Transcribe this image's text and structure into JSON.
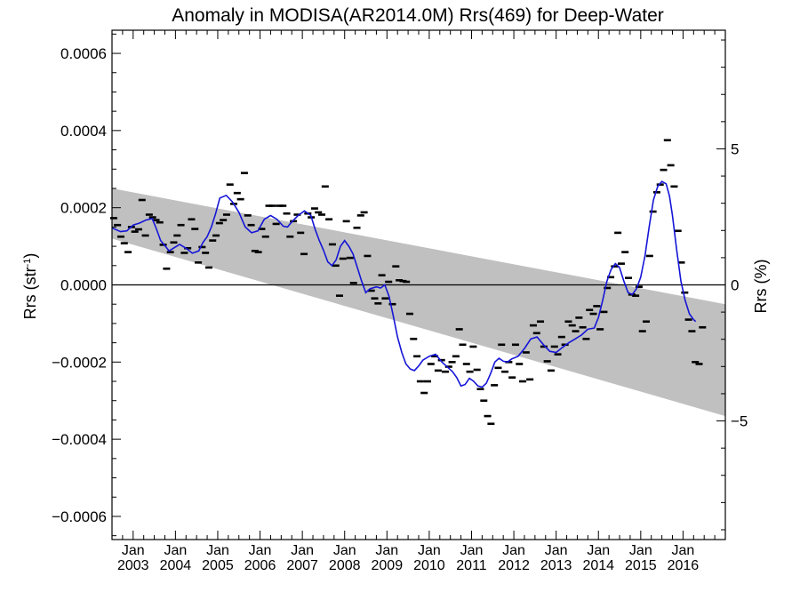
{
  "chart_data": {
    "type": "scatter",
    "title": "Anomaly in MODISA(AR2014.0M) Rrs(469) for Deep-Water",
    "ylabel_main": "Rrs (str",
    "ylabel_sup": "-1",
    "ylabel_close": ")",
    "ylabel_right": "Rrs (%)",
    "ylim": [
      -0.00066,
      0.00066
    ],
    "y2lim": [
      -9.36,
      9.36
    ],
    "xlim": [
      2002.5,
      2017.0
    ],
    "grid": false,
    "yticks": [
      {
        "value": 0.0006,
        "label": "0.0006"
      },
      {
        "value": 0.0004,
        "label": "0.0004"
      },
      {
        "value": 0.0002,
        "label": "0.0002"
      },
      {
        "value": 0.0,
        "label": "0.0000"
      },
      {
        "value": -0.0002,
        "label": "−0.0002"
      },
      {
        "value": -0.0004,
        "label": "−0.0004"
      },
      {
        "value": -0.0006,
        "label": "−0.0006"
      }
    ],
    "y2ticks": [
      {
        "value": 5,
        "label": "5"
      },
      {
        "value": 0,
        "label": "0"
      },
      {
        "value": -5,
        "label": "−5"
      }
    ],
    "xticks": [
      {
        "value": 2003.0,
        "label_top": "Jan",
        "label_bottom": "2003"
      },
      {
        "value": 2004.0,
        "label_top": "Jan",
        "label_bottom": "2004"
      },
      {
        "value": 2005.0,
        "label_top": "Jan",
        "label_bottom": "2005"
      },
      {
        "value": 2006.0,
        "label_top": "Jan",
        "label_bottom": "2006"
      },
      {
        "value": 2007.0,
        "label_top": "Jan",
        "label_bottom": "2007"
      },
      {
        "value": 2008.0,
        "label_top": "Jan",
        "label_bottom": "2008"
      },
      {
        "value": 2009.0,
        "label_top": "Jan",
        "label_bottom": "2009"
      },
      {
        "value": 2010.0,
        "label_top": "Jan",
        "label_bottom": "2010"
      },
      {
        "value": 2011.0,
        "label_top": "Jan",
        "label_bottom": "2011"
      },
      {
        "value": 2012.0,
        "label_top": "Jan",
        "label_bottom": "2012"
      },
      {
        "value": 2013.0,
        "label_top": "Jan",
        "label_bottom": "2013"
      },
      {
        "value": 2014.0,
        "label_top": "Jan",
        "label_bottom": "2014"
      },
      {
        "value": 2015.0,
        "label_top": "Jan",
        "label_bottom": "2015"
      },
      {
        "value": 2016.0,
        "label_top": "Jan",
        "label_bottom": "2016"
      }
    ],
    "band": {
      "color": "#c0c0c0",
      "x": [
        2002.5,
        2017.0
      ],
      "upper": [
        0.00025,
        -5e-05
      ],
      "lower": [
        0.00012,
        -0.00034
      ]
    },
    "zero_line": 0.0,
    "points_color": "#000000",
    "points": [
      [
        2002.54,
        0.000173
      ],
      [
        2002.63,
        0.000155
      ],
      [
        2002.71,
        0.000125
      ],
      [
        2002.79,
        0.000108
      ],
      [
        2002.88,
        8.5e-05
      ],
      [
        2002.96,
        0.00015
      ],
      [
        2003.04,
        0.000138
      ],
      [
        2003.13,
        0.000144
      ],
      [
        2003.21,
        0.00022
      ],
      [
        2003.29,
        0.000128
      ],
      [
        2003.38,
        0.000182
      ],
      [
        2003.46,
        0.000175
      ],
      [
        2003.54,
        0.000168
      ],
      [
        2003.63,
        0.000162
      ],
      [
        2003.71,
        0.000104
      ],
      [
        2003.79,
        4.2e-05
      ],
      [
        2003.88,
        8.5e-05
      ],
      [
        2003.96,
        0.00011
      ],
      [
        2004.04,
        0.000128
      ],
      [
        2004.13,
        0.000155
      ],
      [
        2004.21,
        8.3e-05
      ],
      [
        2004.29,
        9.5e-05
      ],
      [
        2004.38,
        0.00017
      ],
      [
        2004.46,
        0.000145
      ],
      [
        2004.54,
        5.8e-05
      ],
      [
        2004.63,
        9.8e-05
      ],
      [
        2004.71,
        8.3e-05
      ],
      [
        2004.79,
        4.5e-05
      ],
      [
        2004.88,
        0.000115
      ],
      [
        2004.96,
        0.000128
      ],
      [
        2005.04,
        0.00016
      ],
      [
        2005.13,
        0.000168
      ],
      [
        2005.21,
        0.000182
      ],
      [
        2005.29,
        0.00026
      ],
      [
        2005.38,
        0.00021
      ],
      [
        2005.46,
        0.000238
      ],
      [
        2005.54,
        0.000222
      ],
      [
        2005.63,
        0.00029
      ],
      [
        2005.71,
        0.00018
      ],
      [
        2005.79,
        0.000155
      ],
      [
        2005.88,
        8.8e-05
      ],
      [
        2005.96,
        8.5e-05
      ],
      [
        2006.04,
        0.000145
      ],
      [
        2006.13,
        0.000125
      ],
      [
        2006.21,
        0.000205
      ],
      [
        2006.29,
        0.000205
      ],
      [
        2006.38,
        0.000158
      ],
      [
        2006.46,
        0.000205
      ],
      [
        2006.54,
        0.000205
      ],
      [
        2006.63,
        0.000185
      ],
      [
        2006.71,
        0.000125
      ],
      [
        2006.79,
        0.000165
      ],
      [
        2006.88,
        0.000182
      ],
      [
        2006.96,
        0.000135
      ],
      [
        2007.04,
        8e-05
      ],
      [
        2007.13,
        0.000185
      ],
      [
        2007.21,
        0.000175
      ],
      [
        2007.29,
        0.000198
      ],
      [
        2007.38,
        0.000188
      ],
      [
        2007.46,
        0.000182
      ],
      [
        2007.54,
        0.000255
      ],
      [
        2007.63,
        0.00017
      ],
      [
        2007.71,
        0.000105
      ],
      [
        2007.79,
        5e-05
      ],
      [
        2007.88,
        -2.8e-05
      ],
      [
        2007.96,
        6.8e-05
      ],
      [
        2008.04,
        0.000165
      ],
      [
        2008.13,
        7e-05
      ],
      [
        2008.21,
        5e-06
      ],
      [
        2008.29,
        0.000148
      ],
      [
        2008.38,
        0.00018
      ],
      [
        2008.46,
        0.000188
      ],
      [
        2008.54,
        7.5e-05
      ],
      [
        2008.63,
        -1.5e-05
      ],
      [
        2008.71,
        -3.5e-05
      ],
      [
        2008.79,
        -4.8e-05
      ],
      [
        2008.88,
        2.5e-05
      ],
      [
        2008.96,
        -3.5e-05
      ],
      [
        2009.04,
        8e-06
      ],
      [
        2009.13,
        -5e-05
      ],
      [
        2009.21,
        4.8e-05
      ],
      [
        2009.29,
        1.2e-05
      ],
      [
        2009.38,
        1e-05
      ],
      [
        2009.46,
        8e-06
      ],
      [
        2009.54,
        -7.5e-05
      ],
      [
        2009.63,
        -0.00014
      ],
      [
        2009.71,
        -0.000185
      ],
      [
        2009.79,
        -0.00025
      ],
      [
        2009.88,
        -0.00028
      ],
      [
        2009.96,
        -0.00025
      ],
      [
        2010.04,
        -0.000205
      ],
      [
        2010.13,
        -0.000185
      ],
      [
        2010.21,
        -0.000222
      ],
      [
        2010.29,
        -0.000195
      ],
      [
        2010.38,
        -0.000225
      ],
      [
        2010.46,
        -0.000212
      ],
      [
        2010.54,
        -0.0002
      ],
      [
        2010.63,
        -0.000185
      ],
      [
        2010.71,
        -0.000115
      ],
      [
        2010.79,
        -0.000155
      ],
      [
        2010.88,
        -0.000205
      ],
      [
        2010.96,
        -0.000225
      ],
      [
        2011.04,
        -0.00016
      ],
      [
        2011.13,
        -0.00022
      ],
      [
        2011.21,
        -0.00027
      ],
      [
        2011.29,
        -0.0003
      ],
      [
        2011.38,
        -0.00034
      ],
      [
        2011.46,
        -0.00036
      ],
      [
        2011.54,
        -0.00026
      ],
      [
        2011.63,
        -0.000215
      ],
      [
        2011.71,
        -0.000155
      ],
      [
        2011.79,
        -0.000225
      ],
      [
        2011.88,
        -0.0002
      ],
      [
        2011.96,
        -0.00024
      ],
      [
        2012.04,
        -0.000155
      ],
      [
        2012.13,
        -0.000205
      ],
      [
        2012.21,
        -0.00025
      ],
      [
        2012.29,
        -0.000175
      ],
      [
        2012.38,
        -0.000245
      ],
      [
        2012.46,
        -0.000105
      ],
      [
        2012.54,
        -0.000125
      ],
      [
        2012.63,
        -9.5e-05
      ],
      [
        2012.71,
        -0.00016
      ],
      [
        2012.79,
        -0.000198
      ],
      [
        2012.88,
        -0.000222
      ],
      [
        2012.96,
        -0.00016
      ],
      [
        2013.04,
        -0.00018
      ],
      [
        2013.13,
        -0.000135
      ],
      [
        2013.21,
        -0.000155
      ],
      [
        2013.29,
        -9.5e-05
      ],
      [
        2013.38,
        -0.000105
      ],
      [
        2013.46,
        -0.00012
      ],
      [
        2013.54,
        -8.5e-05
      ],
      [
        2013.63,
        -0.00011
      ],
      [
        2013.71,
        -0.00014
      ],
      [
        2013.79,
        -6.5e-05
      ],
      [
        2013.88,
        -7.5e-05
      ],
      [
        2013.96,
        -5.5e-05
      ],
      [
        2014.04,
        -0.000115
      ],
      [
        2014.13,
        -7e-05
      ],
      [
        2014.21,
        -8e-06
      ],
      [
        2014.29,
        2e-05
      ],
      [
        2014.38,
        4.8e-05
      ],
      [
        2014.46,
        0.000135
      ],
      [
        2014.54,
        5.5e-05
      ],
      [
        2014.63,
        8.5e-05
      ],
      [
        2014.71,
        1.8e-05
      ],
      [
        2014.79,
        -2.5e-05
      ],
      [
        2014.88,
        -2.8e-05
      ],
      [
        2014.96,
        -5e-06
      ],
      [
        2015.04,
        -0.00012
      ],
      [
        2015.13,
        -9.5e-05
      ],
      [
        2015.21,
        7.5e-05
      ],
      [
        2015.29,
        0.00019
      ],
      [
        2015.38,
        0.00024
      ],
      [
        2015.46,
        0.00026
      ],
      [
        2015.54,
        0.000298
      ],
      [
        2015.63,
        0.000375
      ],
      [
        2015.71,
        0.00031
      ],
      [
        2015.79,
        0.000255
      ],
      [
        2015.88,
        0.00014
      ],
      [
        2015.96,
        5.8e-05
      ],
      [
        2016.04,
        -2e-05
      ],
      [
        2016.13,
        -9e-05
      ],
      [
        2016.21,
        -0.00012
      ],
      [
        2016.29,
        -0.0002
      ],
      [
        2016.38,
        -0.000205
      ],
      [
        2016.46,
        -0.00011
      ]
    ],
    "smooth_color": "#1515d8",
    "smooth": [
      [
        2002.5,
        0.000148
      ],
      [
        2002.7,
        0.000138
      ],
      [
        2002.85,
        0.00014
      ],
      [
        2003.0,
        0.000155
      ],
      [
        2003.15,
        0.00016
      ],
      [
        2003.3,
        0.000168
      ],
      [
        2003.45,
        0.000172
      ],
      [
        2003.55,
        0.000145
      ],
      [
        2003.65,
        0.000115
      ],
      [
        2003.75,
        0.000102
      ],
      [
        2003.85,
        8.8e-05
      ],
      [
        2003.95,
        9.5e-05
      ],
      [
        2004.1,
        0.000105
      ],
      [
        2004.25,
        9.5e-05
      ],
      [
        2004.4,
        8.2e-05
      ],
      [
        2004.55,
        8.8e-05
      ],
      [
        2004.65,
        0.00011
      ],
      [
        2004.75,
        0.000125
      ],
      [
        2004.85,
        0.00015
      ],
      [
        2004.95,
        0.000185
      ],
      [
        2005.05,
        0.000225
      ],
      [
        2005.2,
        0.000232
      ],
      [
        2005.35,
        0.000215
      ],
      [
        2005.5,
        0.000188
      ],
      [
        2005.65,
        0.00015
      ],
      [
        2005.8,
        0.000135
      ],
      [
        2005.95,
        0.00014
      ],
      [
        2006.1,
        0.00017
      ],
      [
        2006.25,
        0.00018
      ],
      [
        2006.4,
        0.00017
      ],
      [
        2006.55,
        0.000152
      ],
      [
        2006.65,
        0.00015
      ],
      [
        2006.75,
        0.000163
      ],
      [
        2006.9,
        0.00018
      ],
      [
        2007.05,
        0.000192
      ],
      [
        2007.2,
        0.00018
      ],
      [
        2007.3,
        0.000145
      ],
      [
        2007.4,
        0.000115
      ],
      [
        2007.5,
        9e-05
      ],
      [
        2007.6,
        6e-05
      ],
      [
        2007.7,
        5e-05
      ],
      [
        2007.8,
        6.5e-05
      ],
      [
        2007.9,
        0.0001
      ],
      [
        2008.0,
        0.000115
      ],
      [
        2008.1,
        0.0001
      ],
      [
        2008.2,
        8e-05
      ],
      [
        2008.3,
        4.5e-05
      ],
      [
        2008.4,
        1e-05
      ],
      [
        2008.5,
        -2e-05
      ],
      [
        2008.6,
        -1e-05
      ],
      [
        2008.75,
        -5e-06
      ],
      [
        2008.85,
        -8e-06
      ],
      [
        2008.95,
        0.0
      ],
      [
        2009.05,
        -3e-05
      ],
      [
        2009.15,
        -8e-05
      ],
      [
        2009.25,
        -0.000135
      ],
      [
        2009.35,
        -0.000175
      ],
      [
        2009.45,
        -0.000205
      ],
      [
        2009.55,
        -0.000218
      ],
      [
        2009.65,
        -0.000222
      ],
      [
        2009.75,
        -0.00021
      ],
      [
        2009.85,
        -0.000195
      ],
      [
        2010.0,
        -0.000185
      ],
      [
        2010.15,
        -0.00018
      ],
      [
        2010.3,
        -0.0002
      ],
      [
        2010.45,
        -0.000215
      ],
      [
        2010.55,
        -0.000225
      ],
      [
        2010.65,
        -0.00024
      ],
      [
        2010.75,
        -0.000262
      ],
      [
        2010.85,
        -0.000258
      ],
      [
        2010.95,
        -0.000242
      ],
      [
        2011.05,
        -0.00025
      ],
      [
        2011.15,
        -0.000262
      ],
      [
        2011.25,
        -0.000265
      ],
      [
        2011.35,
        -0.000255
      ],
      [
        2011.45,
        -0.00023
      ],
      [
        2011.55,
        -0.0002
      ],
      [
        2011.65,
        -0.00019
      ],
      [
        2011.75,
        -0.000198
      ],
      [
        2011.85,
        -0.0002
      ],
      [
        2011.95,
        -0.000192
      ],
      [
        2012.1,
        -0.000185
      ],
      [
        2012.25,
        -0.000165
      ],
      [
        2012.4,
        -0.00014
      ],
      [
        2012.55,
        -0.000135
      ],
      [
        2012.7,
        -0.000155
      ],
      [
        2012.85,
        -0.000172
      ],
      [
        2013.0,
        -0.000175
      ],
      [
        2013.15,
        -0.000162
      ],
      [
        2013.3,
        -0.00015
      ],
      [
        2013.45,
        -0.00014
      ],
      [
        2013.6,
        -0.00013
      ],
      [
        2013.75,
        -0.000115
      ],
      [
        2013.9,
        -0.000112
      ],
      [
        2014.0,
        -8.5e-05
      ],
      [
        2014.1,
        -4e-05
      ],
      [
        2014.2,
        1e-05
      ],
      [
        2014.3,
        4e-05
      ],
      [
        2014.4,
        5.5e-05
      ],
      [
        2014.5,
        4.5e-05
      ],
      [
        2014.6,
        1e-05
      ],
      [
        2014.7,
        -2e-05
      ],
      [
        2014.8,
        -2.5e-05
      ],
      [
        2014.9,
        -1e-05
      ],
      [
        2015.0,
        2e-05
      ],
      [
        2015.1,
        7.5e-05
      ],
      [
        2015.2,
        0.00015
      ],
      [
        2015.3,
        0.00022
      ],
      [
        2015.4,
        0.000255
      ],
      [
        2015.5,
        0.000268
      ],
      [
        2015.6,
        0.000262
      ],
      [
        2015.68,
        0.00023
      ],
      [
        2015.75,
        0.00018
      ],
      [
        2015.85,
        9e-05
      ],
      [
        2015.95,
        1e-05
      ],
      [
        2016.05,
        -4e-05
      ],
      [
        2016.15,
        -7.5e-05
      ],
      [
        2016.25,
        -9e-05
      ],
      [
        2016.3,
        -9.5e-05
      ]
    ]
  }
}
